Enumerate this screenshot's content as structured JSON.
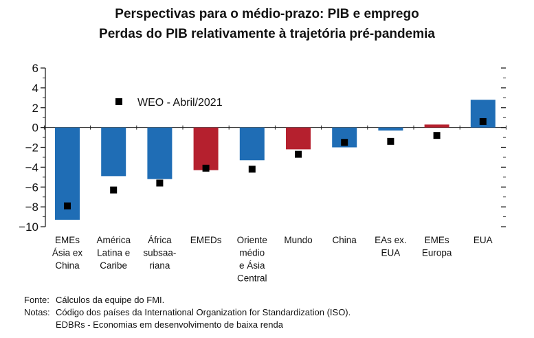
{
  "chart_data": {
    "type": "bar",
    "title": "Perspectivas para o médio-prazo: PIB e emprego",
    "subtitle": "Perdas do PIB relativamente à trajetória pré-pandemia",
    "categories": [
      [
        "EMEs",
        "Ásia ex",
        "China"
      ],
      [
        "América",
        "Latina e",
        "Caribe"
      ],
      [
        "África",
        "subsaa-",
        "riana"
      ],
      [
        "EMEDs"
      ],
      [
        "Oriente",
        "médio",
        "e Ásia",
        "Central"
      ],
      [
        "Mundo"
      ],
      [
        "China"
      ],
      [
        "EAs ex.",
        "EUA"
      ],
      [
        "EMEs",
        "Europa"
      ],
      [
        "EUA"
      ]
    ],
    "series": [
      {
        "values": [
          -9.3,
          -4.9,
          -5.2,
          -4.3,
          -3.3,
          -2.2,
          -2.0,
          -0.3,
          0.3,
          2.8
        ],
        "colors": [
          "#1f6db5",
          "#1f6db5",
          "#1f6db5",
          "#b5202e",
          "#1f6db5",
          "#b5202e",
          "#1f6db5",
          "#1f6db5",
          "#b5202e",
          "#1f6db5"
        ]
      },
      {
        "name": "WEO - Abril/2021",
        "marker": "square",
        "color": "#000000",
        "values": [
          -7.9,
          -6.3,
          -5.6,
          -4.1,
          -4.2,
          -2.7,
          -1.5,
          -1.4,
          -0.8,
          0.6
        ]
      }
    ],
    "ylim": [
      -10,
      6
    ],
    "yticks": [
      6,
      4,
      2,
      0,
      -2,
      -4,
      -6,
      -8,
      -10
    ],
    "grid": false
  },
  "notes": {
    "source_label": "Fonte:",
    "source_text": "Cálculos da equipe do FMI.",
    "notes_label": "Notas:",
    "notes_text": "Código dos países da International Organization for Standardization (ISO).",
    "notes_text2": "EDBRs - Economias em desenvolvimento  de baixa renda"
  }
}
